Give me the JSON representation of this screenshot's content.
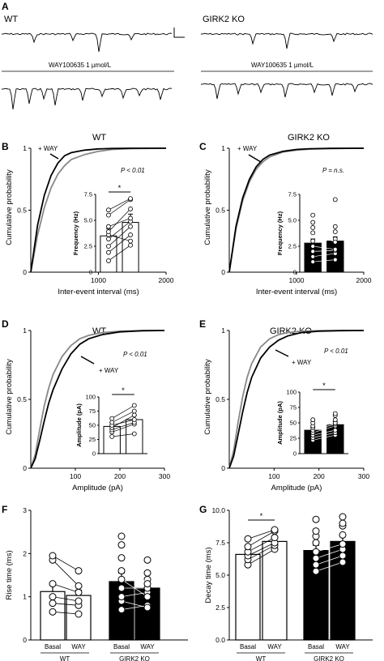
{
  "panel_a": {
    "letter": "A",
    "left_label": "WT",
    "right_label": "GIRK2 KO",
    "drug_label_left": "WAY100635 1 µmol/L",
    "drug_label_right": "WAY100635 1 µmol/L"
  },
  "panels": {
    "B": {
      "letter": "B",
      "title": "WT",
      "curve_label": "+ WAY",
      "pvalue": "P < 0.01",
      "star": "*"
    },
    "C": {
      "letter": "C",
      "title": "GIRK2 KO",
      "curve_label": "+ WAY",
      "pvalue": "P = n.s.",
      "star": ""
    },
    "D": {
      "letter": "D",
      "title": "WT",
      "curve_label": "+ WAY",
      "pvalue": "P < 0.01",
      "star": "*"
    },
    "E": {
      "letter": "E",
      "title": "GIRK2 KO",
      "curve_label": "+ WAY",
      "pvalue": "P < 0.01",
      "star": "*"
    },
    "F": {
      "letter": "F",
      "star": ""
    },
    "G": {
      "letter": "G",
      "star": "*"
    }
  },
  "colors": {
    "basal": "#888888",
    "way": "#000000",
    "wt_bar": "#ffffff",
    "ko_bar": "#000000"
  },
  "chart_data": [
    {
      "id": "B",
      "type": "line",
      "title": "WT",
      "xlabel": "Inter-event interval (ms)",
      "ylabel": "Cumulative  probability",
      "xlim": [
        0,
        2000
      ],
      "ylim": [
        0,
        1
      ],
      "xticks": [
        "1000",
        "2000"
      ],
      "yticks": [
        "0",
        "0.5",
        "1"
      ],
      "series": [
        {
          "role": "basal",
          "x": [
            0,
            100,
            200,
            300,
            400,
            500,
            600,
            800,
            1000,
            1200,
            1500,
            2000
          ],
          "y": [
            0,
            0.3,
            0.52,
            0.68,
            0.79,
            0.86,
            0.91,
            0.95,
            0.975,
            0.99,
            0.997,
            1
          ]
        },
        {
          "name": "+ WAY",
          "x": [
            0,
            100,
            200,
            300,
            400,
            500,
            600,
            800,
            1000,
            1200,
            1500,
            2000
          ],
          "y": [
            0,
            0.38,
            0.62,
            0.78,
            0.88,
            0.94,
            0.965,
            0.985,
            0.995,
            0.998,
            1,
            1
          ]
        }
      ],
      "inset": {
        "type": "bar",
        "ylabel": "Frequency (Hz)",
        "yticks": [
          "0",
          "2.5",
          "5.0",
          "7.5"
        ],
        "ylim": [
          0,
          7.5
        ],
        "values": [
          3.5,
          4.8
        ],
        "errors": [
          0.7,
          0.8
        ],
        "pairs": [
          [
            1.1,
            2.6
          ],
          [
            1.9,
            3.6
          ],
          [
            2.5,
            4.4
          ],
          [
            3.2,
            4.9
          ],
          [
            3.6,
            3.0
          ],
          [
            3.9,
            6.1
          ],
          [
            4.4,
            5.2
          ],
          [
            5.5,
            7.0
          ],
          [
            6.0,
            7.1
          ]
        ]
      }
    },
    {
      "id": "C",
      "type": "line",
      "title": "GIRK2 KO",
      "xlabel": "Inter-event interval (ms)",
      "ylabel": "Cumulative  probability",
      "xlim": [
        0,
        2000
      ],
      "ylim": [
        0,
        1
      ],
      "xticks": [
        "1000",
        "2000"
      ],
      "yticks": [
        "0",
        "0.5",
        "1"
      ],
      "series": [
        {
          "role": "basal",
          "x": [
            0,
            100,
            200,
            300,
            400,
            500,
            600,
            800,
            1000,
            1200,
            1500,
            2000
          ],
          "y": [
            0,
            0.35,
            0.58,
            0.73,
            0.83,
            0.89,
            0.93,
            0.97,
            0.985,
            0.993,
            0.998,
            1
          ]
        },
        {
          "name": "+ WAY",
          "x": [
            0,
            100,
            200,
            300,
            400,
            500,
            600,
            800,
            1000,
            1200,
            1500,
            2000
          ],
          "y": [
            0,
            0.37,
            0.6,
            0.75,
            0.85,
            0.91,
            0.945,
            0.975,
            0.99,
            0.996,
            0.999,
            1
          ]
        }
      ],
      "inset": {
        "type": "bar",
        "ylabel": "Frequency (Hz)",
        "yticks": [
          "0",
          "2.5",
          "5.0",
          "7.5"
        ],
        "ylim": [
          0,
          7.5
        ],
        "values": [
          2.8,
          3.0
        ],
        "errors": [
          0.4,
          0.4
        ],
        "pairs": [
          [
            1.0,
            1.2
          ],
          [
            1.5,
            1.8
          ],
          [
            2.0,
            2.1
          ],
          [
            2.5,
            2.2
          ],
          [
            3.0,
            3.2
          ],
          [
            3.8,
            2.9
          ],
          [
            4.3,
            3.9
          ],
          [
            4.8,
            4.4
          ],
          [
            5.5,
            7.0
          ]
        ]
      }
    },
    {
      "id": "D",
      "type": "line",
      "title": "WT",
      "xlabel": "Amplitude (pA)",
      "ylabel": "Cumulative probability",
      "xlim": [
        0,
        300
      ],
      "ylim": [
        0,
        1
      ],
      "xticks": [
        "100",
        "200",
        "300"
      ],
      "yticks": [
        "0",
        "0.5",
        "1"
      ],
      "series": [
        {
          "role": "basal",
          "x": [
            0,
            10,
            20,
            30,
            40,
            50,
            70,
            90,
            110,
            130,
            160,
            200,
            250,
            300
          ],
          "y": [
            0,
            0.1,
            0.28,
            0.45,
            0.58,
            0.68,
            0.81,
            0.89,
            0.94,
            0.965,
            0.985,
            0.995,
            0.999,
            1
          ]
        },
        {
          "name": "+ WAY",
          "x": [
            0,
            10,
            20,
            30,
            40,
            50,
            70,
            90,
            110,
            130,
            160,
            200,
            250,
            300
          ],
          "y": [
            0,
            0.07,
            0.2,
            0.34,
            0.47,
            0.57,
            0.72,
            0.83,
            0.9,
            0.94,
            0.97,
            0.99,
            0.998,
            1
          ]
        }
      ],
      "inset": {
        "type": "bar",
        "ylabel": "Amplitude (pA)",
        "yticks": [
          "0",
          "25",
          "50",
          "75",
          "100"
        ],
        "ylim": [
          0,
          100
        ],
        "values": [
          48,
          60
        ],
        "errors": [
          7,
          8
        ],
        "pairs": [
          [
            30,
            35
          ],
          [
            38,
            52
          ],
          [
            42,
            55
          ],
          [
            46,
            68
          ],
          [
            50,
            60
          ],
          [
            55,
            75
          ],
          [
            62,
            85
          ]
        ]
      }
    },
    {
      "id": "E",
      "type": "line",
      "title": "GIRK2 KO",
      "xlabel": "Amplitude (pA)",
      "ylabel": "Cumulative probability",
      "xlim": [
        0,
        300
      ],
      "ylim": [
        0,
        1
      ],
      "xticks": [
        "100",
        "200",
        "300"
      ],
      "yticks": [
        "0",
        "0.5",
        "1"
      ],
      "series": [
        {
          "role": "basal",
          "x": [
            0,
            10,
            20,
            30,
            40,
            50,
            70,
            90,
            110,
            130,
            160,
            200,
            250,
            300
          ],
          "y": [
            0,
            0.13,
            0.34,
            0.52,
            0.66,
            0.76,
            0.88,
            0.94,
            0.97,
            0.985,
            0.995,
            0.999,
            1,
            1
          ]
        },
        {
          "name": "+ WAY",
          "x": [
            0,
            10,
            20,
            30,
            40,
            50,
            70,
            90,
            110,
            130,
            160,
            200,
            250,
            300
          ],
          "y": [
            0,
            0.09,
            0.25,
            0.41,
            0.55,
            0.66,
            0.8,
            0.88,
            0.93,
            0.96,
            0.985,
            0.995,
            0.999,
            1
          ]
        }
      ],
      "inset": {
        "type": "bar",
        "ylabel": "Amplitude (pA)",
        "yticks": [
          "0",
          "25",
          "50",
          "75",
          "100"
        ],
        "ylim": [
          0,
          100
        ],
        "values": [
          38,
          47
        ],
        "errors": [
          4,
          5
        ],
        "pairs": [
          [
            22,
            30
          ],
          [
            26,
            34
          ],
          [
            30,
            38
          ],
          [
            34,
            45
          ],
          [
            38,
            48
          ],
          [
            42,
            50
          ],
          [
            45,
            55
          ],
          [
            50,
            62
          ],
          [
            55,
            65
          ]
        ]
      }
    },
    {
      "id": "F",
      "type": "bar",
      "ylabel": "Rise time (ms)",
      "ylim": [
        0,
        3
      ],
      "yticks": [
        "0",
        "1",
        "2",
        "3"
      ],
      "categories": [
        "Basal",
        "WAY",
        "Basal",
        "WAY"
      ],
      "groups": [
        "WT",
        "GIRK2 KO"
      ],
      "values": [
        1.12,
        1.03,
        1.35,
        1.2
      ],
      "errors": [
        0.2,
        0.12,
        0.2,
        0.1
      ],
      "pairs": [
        [
          [
            0.65,
            0.6
          ],
          [
            0.85,
            0.8
          ],
          [
            1.0,
            0.9
          ],
          [
            1.3,
            1.1
          ],
          [
            1.85,
            1.25
          ],
          [
            1.95,
            1.6
          ]
        ],
        [
          [
            0.7,
            0.8
          ],
          [
            0.9,
            0.75
          ],
          [
            1.0,
            1.1
          ],
          [
            1.2,
            1.2
          ],
          [
            1.4,
            1.0
          ],
          [
            1.6,
            1.4
          ],
          [
            1.9,
            1.3
          ],
          [
            2.2,
            1.55
          ],
          [
            2.4,
            1.85
          ]
        ]
      ]
    },
    {
      "id": "G",
      "type": "bar",
      "ylabel": "Decay time (ms)",
      "ylim": [
        0,
        10
      ],
      "yticks": [
        "0.0",
        "2.5",
        "5.0",
        "7.5",
        "10.0"
      ],
      "categories": [
        "Basal",
        "WAY",
        "Basal",
        "WAY"
      ],
      "groups": [
        "WT",
        "GIRK2 KO"
      ],
      "values": [
        6.6,
        7.6,
        6.9,
        7.6
      ],
      "errors": [
        0.25,
        0.3,
        0.4,
        0.4
      ],
      "pairs": [
        [
          [
            5.8,
            7.0
          ],
          [
            6.2,
            7.3
          ],
          [
            6.5,
            7.5
          ],
          [
            6.8,
            7.9
          ],
          [
            7.2,
            8.4
          ],
          [
            7.8,
            8.5
          ]
        ],
        [
          [
            5.3,
            6.0
          ],
          [
            5.8,
            6.5
          ],
          [
            6.3,
            7.0
          ],
          [
            6.8,
            7.4
          ],
          [
            7.5,
            8.1
          ],
          [
            8.0,
            8.8
          ],
          [
            8.4,
            9.0
          ],
          [
            9.3,
            9.5
          ]
        ]
      ]
    }
  ]
}
